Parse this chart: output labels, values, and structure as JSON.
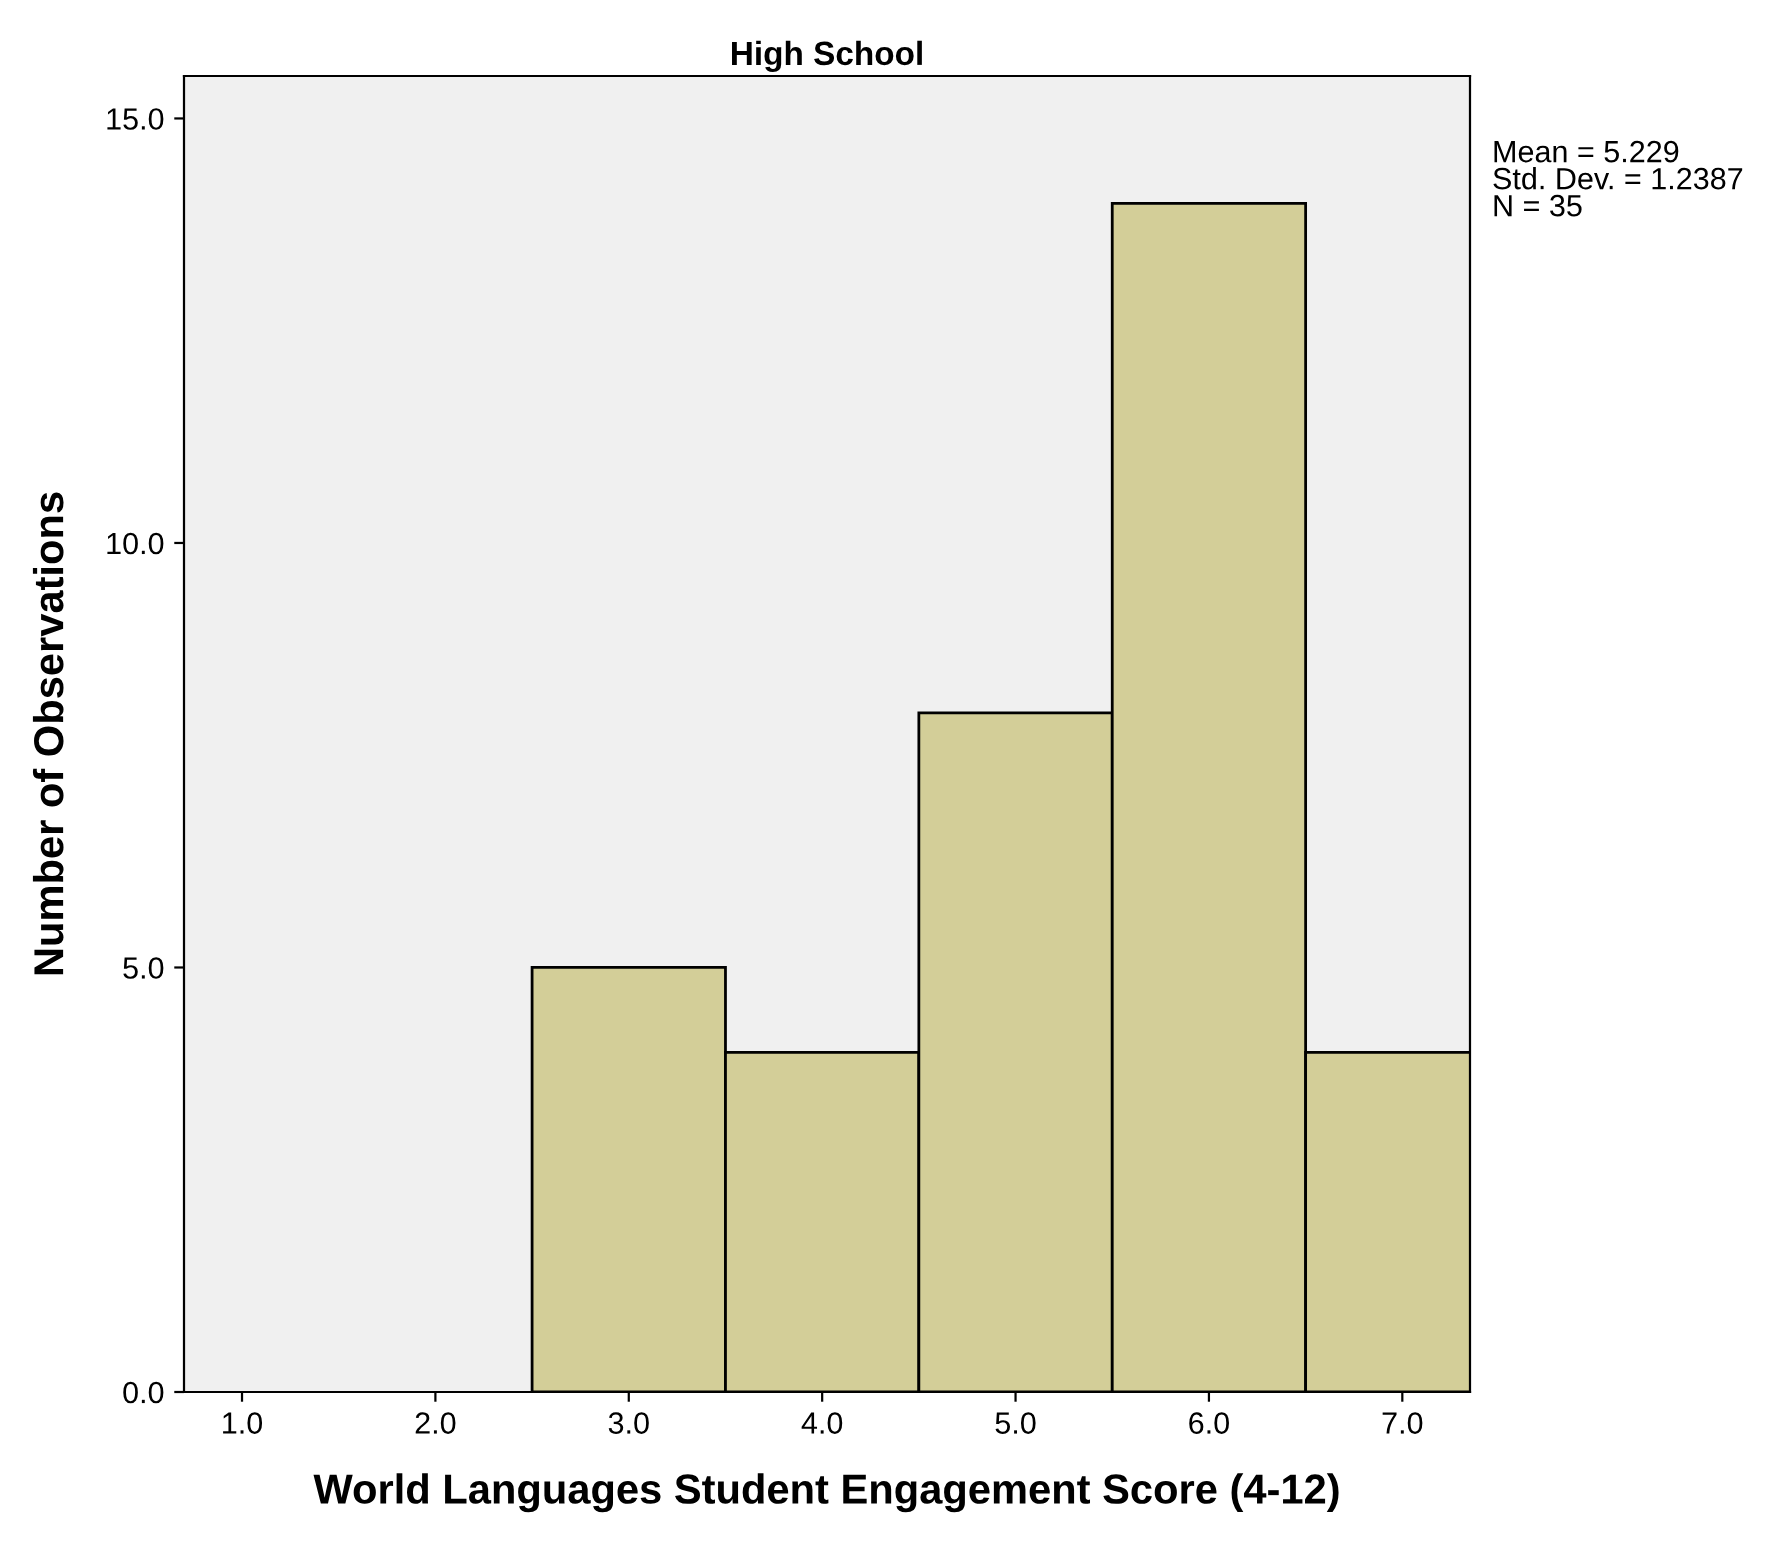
{
  "chart_data": {
    "type": "histogram",
    "title": "High School",
    "xlabel": "World Languages Student Engagement Score (4-12)",
    "ylabel": "Number of Observations",
    "bins": [
      2.5,
      3.5,
      4.5,
      5.5,
      6.5,
      7.5
    ],
    "values": [
      5,
      4,
      8,
      14,
      4
    ],
    "color": "#d3ce98",
    "xlim": [
      0.7,
      7.35
    ],
    "xticks": [
      {
        "value": 1,
        "label": "1.0"
      },
      {
        "value": 2,
        "label": "2.0"
      },
      {
        "value": 3,
        "label": "3.0"
      },
      {
        "value": 4,
        "label": "4.0"
      },
      {
        "value": 5,
        "label": "5.0"
      },
      {
        "value": 6,
        "label": "6.0"
      },
      {
        "value": 7,
        "label": "7.0"
      }
    ],
    "ylim": [
      0,
      15.5
    ],
    "yticks": [
      {
        "value": 0,
        "label": "0.0"
      },
      {
        "value": 5,
        "label": "5.0"
      },
      {
        "value": 10,
        "label": "10.0"
      },
      {
        "value": 15,
        "label": "15.0"
      }
    ],
    "annotations": [
      "Mean = 5.229",
      "Std. Dev. = 1.2387",
      "N = 35"
    ],
    "grid": false,
    "legend": false
  }
}
